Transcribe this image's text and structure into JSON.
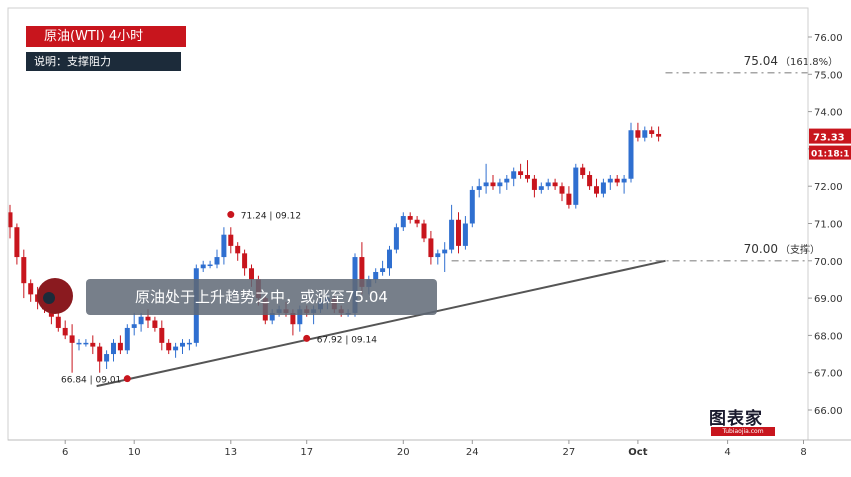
{
  "header": {
    "title": "原油(WTI)  4小时",
    "subtitle": "说明：支撑阻力"
  },
  "banner_text": "原油处于上升趋势之中，或涨至75.04",
  "logo": {
    "name": "图表家",
    "url": "Tubiaojia.com"
  },
  "colors": {
    "up": "#2f6fd0",
    "down": "#c8151d",
    "trendline": "#555555",
    "level_line": "#888888"
  },
  "chart_data": {
    "type": "candlestick",
    "title": "原油(WTI)  4小时",
    "y_axis": {
      "min": 65.3,
      "max": 76.6,
      "ticks": [
        "66.00",
        "67.00",
        "68.00",
        "69.00",
        "70.00",
        "71.00",
        "72.00",
        "73.00",
        "74.00",
        "75.00",
        "76.00"
      ]
    },
    "x_axis": {
      "ticks": [
        {
          "label": "6",
          "bar": 8
        },
        {
          "label": "10",
          "bar": 18
        },
        {
          "label": "13",
          "bar": 32
        },
        {
          "label": "17",
          "bar": 43
        },
        {
          "label": "20",
          "bar": 57
        },
        {
          "label": "24",
          "bar": 67
        },
        {
          "label": "27",
          "bar": 81
        },
        {
          "label": "Oct",
          "bar": 91
        },
        {
          "label": "4",
          "bar": 104
        },
        {
          "label": "8",
          "bar": 115
        }
      ]
    },
    "last_price": "73.33",
    "countdown": "01:18:1",
    "candles": [
      [
        71.3,
        71.5,
        70.6,
        70.9
      ],
      [
        70.9,
        71.0,
        69.9,
        70.1
      ],
      [
        70.1,
        70.3,
        69.0,
        69.4
      ],
      [
        69.4,
        69.5,
        68.9,
        69.1
      ],
      [
        69.1,
        69.3,
        68.7,
        68.9
      ],
      [
        68.9,
        69.2,
        68.6,
        68.7
      ],
      [
        68.7,
        68.8,
        68.3,
        68.5
      ],
      [
        68.5,
        68.6,
        68.1,
        68.2
      ],
      [
        68.2,
        68.4,
        67.9,
        68.0
      ],
      [
        68.0,
        68.3,
        67.0,
        67.8
      ],
      [
        67.8,
        67.9,
        67.6,
        67.8
      ],
      [
        67.8,
        67.9,
        67.7,
        67.8
      ],
      [
        67.8,
        68.0,
        67.5,
        67.7
      ],
      [
        67.7,
        67.8,
        67.0,
        67.3
      ],
      [
        67.3,
        67.6,
        67.1,
        67.5
      ],
      [
        67.5,
        67.9,
        67.3,
        67.8
      ],
      [
        67.8,
        68.0,
        67.5,
        67.6
      ],
      [
        67.6,
        68.3,
        67.5,
        68.2
      ],
      [
        68.2,
        68.6,
        68.0,
        68.3
      ],
      [
        68.3,
        68.6,
        68.1,
        68.5
      ],
      [
        68.5,
        68.7,
        68.2,
        68.4
      ],
      [
        68.4,
        68.5,
        68.1,
        68.2
      ],
      [
        68.2,
        68.4,
        67.6,
        67.8
      ],
      [
        67.8,
        67.9,
        67.5,
        67.6
      ],
      [
        67.6,
        67.8,
        67.4,
        67.7
      ],
      [
        67.7,
        67.9,
        67.5,
        67.8
      ],
      [
        67.8,
        67.9,
        67.6,
        67.8
      ],
      [
        67.8,
        69.9,
        67.7,
        69.8
      ],
      [
        69.8,
        70.0,
        69.7,
        69.9
      ],
      [
        69.9,
        70.0,
        69.8,
        69.9
      ],
      [
        69.9,
        70.3,
        69.8,
        70.1
      ],
      [
        70.1,
        70.9,
        69.9,
        70.7
      ],
      [
        70.7,
        70.9,
        70.2,
        70.4
      ],
      [
        70.4,
        70.5,
        70.0,
        70.2
      ],
      [
        70.2,
        70.3,
        69.6,
        69.8
      ],
      [
        69.8,
        69.9,
        69.3,
        69.5
      ],
      [
        69.5,
        69.6,
        68.8,
        69.0
      ],
      [
        69.0,
        69.1,
        68.3,
        68.4
      ],
      [
        68.4,
        68.7,
        68.3,
        68.6
      ],
      [
        68.6,
        68.8,
        68.5,
        68.7
      ],
      [
        68.7,
        68.9,
        68.5,
        68.6
      ],
      [
        68.6,
        68.7,
        68.0,
        68.3
      ],
      [
        68.3,
        68.8,
        68.1,
        68.7
      ],
      [
        68.7,
        68.8,
        68.5,
        68.6
      ],
      [
        68.6,
        68.8,
        68.3,
        68.7
      ],
      [
        68.7,
        69.0,
        68.6,
        68.9
      ],
      [
        68.9,
        69.1,
        68.7,
        69.0
      ],
      [
        69.0,
        69.1,
        68.6,
        68.7
      ],
      [
        68.7,
        68.8,
        68.5,
        68.6
      ],
      [
        68.6,
        68.7,
        68.5,
        68.6
      ],
      [
        68.6,
        70.2,
        68.5,
        70.1
      ],
      [
        70.1,
        70.5,
        69.1,
        69.3
      ],
      [
        69.3,
        69.6,
        69.1,
        69.5
      ],
      [
        69.5,
        69.8,
        69.4,
        69.7
      ],
      [
        69.7,
        70.0,
        69.6,
        69.8
      ],
      [
        69.8,
        70.4,
        69.6,
        70.3
      ],
      [
        70.3,
        71.0,
        70.2,
        70.9
      ],
      [
        70.9,
        71.3,
        70.8,
        71.2
      ],
      [
        71.2,
        71.3,
        71.0,
        71.1
      ],
      [
        71.1,
        71.2,
        70.9,
        71.0
      ],
      [
        71.0,
        71.1,
        70.5,
        70.6
      ],
      [
        70.6,
        70.8,
        69.9,
        70.1
      ],
      [
        70.1,
        70.3,
        69.9,
        70.2
      ],
      [
        70.2,
        70.5,
        69.7,
        70.3
      ],
      [
        70.3,
        71.5,
        70.2,
        71.1
      ],
      [
        71.1,
        71.3,
        70.2,
        70.4
      ],
      [
        70.4,
        71.2,
        70.3,
        71.0
      ],
      [
        71.0,
        72.0,
        70.9,
        71.9
      ],
      [
        71.9,
        72.2,
        71.7,
        72.0
      ],
      [
        72.0,
        72.6,
        71.8,
        72.1
      ],
      [
        72.1,
        72.3,
        71.9,
        72.0
      ],
      [
        72.0,
        72.2,
        71.8,
        72.1
      ],
      [
        72.1,
        72.3,
        71.9,
        72.2
      ],
      [
        72.2,
        72.5,
        72.0,
        72.4
      ],
      [
        72.4,
        72.6,
        72.2,
        72.3
      ],
      [
        72.3,
        72.7,
        72.1,
        72.2
      ],
      [
        72.2,
        72.3,
        71.7,
        71.9
      ],
      [
        71.9,
        72.1,
        71.8,
        72.0
      ],
      [
        72.0,
        72.2,
        71.9,
        72.1
      ],
      [
        72.1,
        72.2,
        71.9,
        72.0
      ],
      [
        72.0,
        72.1,
        71.6,
        71.8
      ],
      [
        71.8,
        72.0,
        71.4,
        71.5
      ],
      [
        71.5,
        72.6,
        71.4,
        72.5
      ],
      [
        72.5,
        72.6,
        72.2,
        72.3
      ],
      [
        72.3,
        72.4,
        71.9,
        72.0
      ],
      [
        72.0,
        72.2,
        71.7,
        71.8
      ],
      [
        71.8,
        72.2,
        71.7,
        72.1
      ],
      [
        72.1,
        72.3,
        71.9,
        72.2
      ],
      [
        72.2,
        72.3,
        72.0,
        72.1
      ],
      [
        72.1,
        72.3,
        71.8,
        72.2
      ],
      [
        72.2,
        73.7,
        72.1,
        73.5
      ],
      [
        73.5,
        73.7,
        73.2,
        73.3
      ],
      [
        73.3,
        73.6,
        73.2,
        73.5
      ],
      [
        73.5,
        73.6,
        73.3,
        73.4
      ],
      [
        73.4,
        73.6,
        73.2,
        73.33
      ]
    ],
    "annotations": [
      {
        "label": "66.84 | 09.01",
        "price": 66.84,
        "bar": 17,
        "side": "left"
      },
      {
        "label": "71.24 | 09.12",
        "price": 71.24,
        "bar": 32,
        "side": "right"
      },
      {
        "label": "67.92 | 09.14",
        "price": 67.92,
        "bar": 43,
        "side": "right"
      }
    ],
    "levels": [
      {
        "price": 75.04,
        "label": "75.04",
        "note": "（161.8%）",
        "start_bar": 95
      },
      {
        "price": 70.0,
        "label": "70.00",
        "note": "（支撑）",
        "start_bar": 64
      }
    ],
    "trendline": {
      "start": {
        "bar": 14,
        "price": 66.8
      },
      "end": {
        "bar": 95,
        "price": 70.0
      }
    },
    "grid": false
  }
}
